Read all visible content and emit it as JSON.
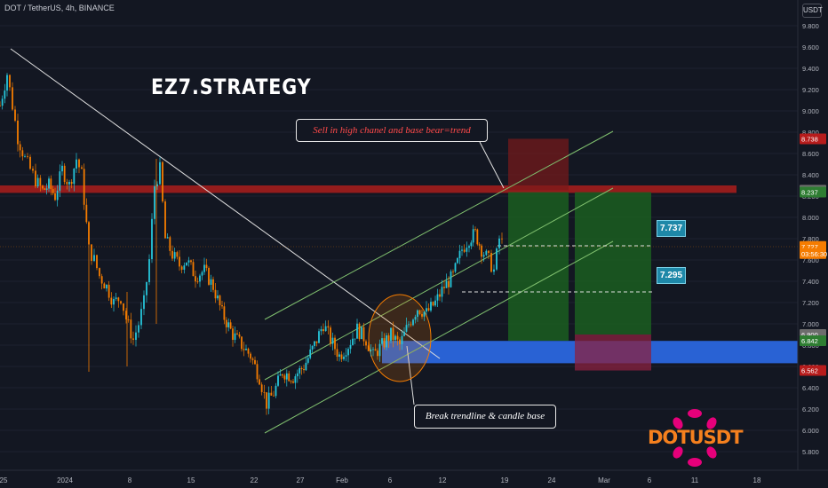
{
  "header": {
    "symbol_line": "DOT / TetherUS, 4h, BINANCE",
    "currency": "USDT"
  },
  "annotations": {
    "brand": "EZ7.STRATEGY",
    "sell_note": "Sell in high chanel and base bear=trend",
    "break_note": "Break trendline & candle base",
    "target1": "7.737",
    "target2": "7.295",
    "logo_text": "DOTUSDT"
  },
  "colors": {
    "background": "#131722",
    "bull_candle": "#26c6da",
    "bear_candle": "#f57c00",
    "red_zone": "#8b1a1a",
    "blue_zone": "#2962d4",
    "green_zone": "#1b5e20",
    "logo_accent": "#e6007a"
  },
  "chart_data": {
    "type": "candlestick",
    "y_scale": {
      "min": 5.8,
      "max": 9.8
    },
    "y_ticks": [
      "9.800",
      "9.600",
      "9.400",
      "9.200",
      "9.000",
      "8.800",
      "8.600",
      "8.400",
      "8.200",
      "8.000",
      "7.800",
      "7.600",
      "7.400",
      "7.200",
      "7.000",
      "6.800",
      "6.600",
      "6.400",
      "6.200",
      "6.000",
      "5.800"
    ],
    "x_ticks": [
      "25",
      "2024",
      "8",
      "15",
      "22",
      "27",
      "Feb",
      "6",
      "12",
      "19",
      "24",
      "Mar",
      "6",
      "11",
      "18"
    ],
    "price_labels": [
      {
        "text": "8.738",
        "value": 8.738,
        "color": "#b71c1c"
      },
      {
        "text": "8.255",
        "value": 8.255,
        "color": "#6d6d6d"
      },
      {
        "text": "8.237",
        "value": 8.237,
        "color": "#2e7d32"
      },
      {
        "text": "7.727",
        "value": 7.727,
        "color": "#f57c00"
      },
      {
        "text": "03:56:30",
        "value": 7.66,
        "color": "#f57c00"
      },
      {
        "text": "6.900",
        "value": 6.9,
        "color": "#6d6d6d"
      },
      {
        "text": "6.842",
        "value": 6.842,
        "color": "#2e7d32"
      },
      {
        "text": "6.562",
        "value": 6.562,
        "color": "#b71c1c"
      }
    ],
    "close_path": [
      [
        0,
        9.05
      ],
      [
        8,
        9.35
      ],
      [
        14,
        9.05
      ],
      [
        20,
        8.75
      ],
      [
        28,
        8.55
      ],
      [
        34,
        8.45
      ],
      [
        40,
        8.35
      ],
      [
        48,
        8.25
      ],
      [
        55,
        8.3
      ],
      [
        62,
        8.2
      ],
      [
        70,
        8.45
      ],
      [
        78,
        8.3
      ],
      [
        86,
        8.55
      ],
      [
        92,
        8.4
      ],
      [
        100,
        7.7
      ],
      [
        106,
        7.6
      ],
      [
        112,
        7.45
      ],
      [
        120,
        7.35
      ],
      [
        128,
        7.2
      ],
      [
        136,
        7.25
      ],
      [
        142,
        7.05
      ],
      [
        150,
        6.85
      ],
      [
        156,
        7.0
      ],
      [
        162,
        7.2
      ],
      [
        168,
        7.6
      ],
      [
        174,
        8.3
      ],
      [
        180,
        8.45
      ],
      [
        186,
        7.8
      ],
      [
        194,
        7.65
      ],
      [
        202,
        7.55
      ],
      [
        210,
        7.6
      ],
      [
        220,
        7.45
      ],
      [
        230,
        7.5
      ],
      [
        240,
        7.35
      ],
      [
        250,
        7.1
      ],
      [
        262,
        6.9
      ],
      [
        272,
        6.8
      ],
      [
        282,
        6.7
      ],
      [
        292,
        6.5
      ],
      [
        300,
        6.25
      ],
      [
        308,
        6.35
      ],
      [
        318,
        6.55
      ],
      [
        330,
        6.5
      ],
      [
        342,
        6.6
      ],
      [
        354,
        6.8
      ],
      [
        364,
        7.0
      ],
      [
        372,
        6.85
      ],
      [
        382,
        6.7
      ],
      [
        392,
        6.8
      ],
      [
        402,
        6.95
      ],
      [
        412,
        6.85
      ],
      [
        420,
        6.7
      ],
      [
        430,
        6.8
      ],
      [
        440,
        6.9
      ],
      [
        450,
        6.8
      ],
      [
        460,
        7.0
      ],
      [
        470,
        7.15
      ],
      [
        480,
        7.1
      ],
      [
        490,
        7.2
      ],
      [
        500,
        7.35
      ],
      [
        510,
        7.45
      ],
      [
        520,
        7.7
      ],
      [
        528,
        7.8
      ],
      [
        535,
        7.85
      ],
      [
        542,
        7.7
      ],
      [
        550,
        7.6
      ],
      [
        556,
        7.5
      ],
      [
        562,
        7.8
      ],
      [
        568,
        7.727
      ]
    ],
    "zones": [
      {
        "name": "red-resistance",
        "y1": 8.3,
        "y2": 8.23,
        "x1": 0,
        "x2": 829
      },
      {
        "name": "blue-support",
        "y1": 6.84,
        "y2": 6.63,
        "x1": 430,
        "x2": 898
      },
      {
        "name": "stop-box",
        "y1": 8.738,
        "y2": 8.255,
        "x1": 572,
        "x2": 640
      },
      {
        "name": "take-profit-1",
        "y1": 8.237,
        "y2": 6.842,
        "x1": 572,
        "x2": 640
      },
      {
        "name": "take-profit-2",
        "y1": 8.237,
        "y2": 6.9,
        "x1": 647,
        "x2": 733
      },
      {
        "name": "stop-2",
        "y1": 6.9,
        "y2": 6.562,
        "x1": 647,
        "x2": 733
      }
    ]
  }
}
